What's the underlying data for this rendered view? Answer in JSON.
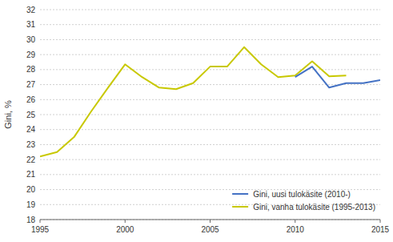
{
  "chart_data": {
    "type": "line",
    "ylabel": "Gini, %",
    "xlim": [
      1995,
      2015
    ],
    "xticks": [
      1995,
      2000,
      2005,
      2010,
      2015
    ],
    "ylim": [
      18,
      32
    ],
    "yticks": [
      18,
      19,
      20,
      21,
      22,
      23,
      24,
      25,
      26,
      27,
      28,
      29,
      30,
      31,
      32
    ],
    "grid": true,
    "legend": "lower right",
    "series": [
      {
        "name": "Gini, uusi tulokäsite (2010-)",
        "color": "#4472C4",
        "x": [
          2010,
          2011,
          2012,
          2013,
          2014,
          2015
        ],
        "values": [
          27.5,
          28.2,
          26.8,
          27.1,
          27.1,
          27.3
        ]
      },
      {
        "name": "Gini, vanha tulokäsite (1995-2013)",
        "color": "#c8c800",
        "x": [
          1995,
          1996,
          1997,
          1998,
          1999,
          2000,
          2001,
          2002,
          2003,
          2004,
          2005,
          2006,
          2007,
          2008,
          2009,
          2010,
          2011,
          2012,
          2013
        ],
        "values": [
          22.2,
          22.5,
          23.5,
          25.2,
          26.8,
          28.35,
          27.5,
          26.8,
          26.7,
          27.1,
          28.2,
          28.2,
          29.5,
          28.35,
          27.5,
          27.6,
          28.55,
          27.55,
          27.6
        ]
      }
    ]
  }
}
